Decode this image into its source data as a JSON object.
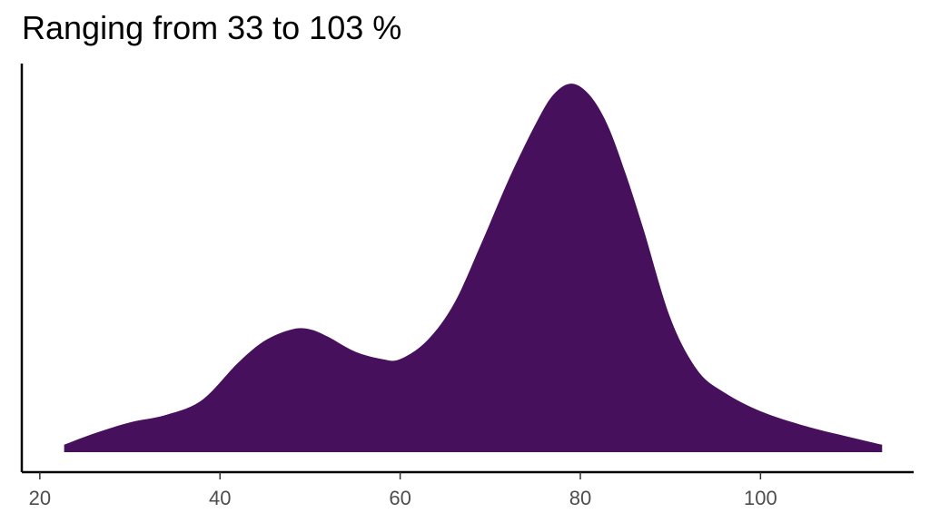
{
  "chart_data": {
    "type": "area",
    "title": "Ranging from 33 to 103 %",
    "xlabel": "",
    "ylabel": "",
    "xlim": [
      18,
      117
    ],
    "ylim": [
      0,
      1.0
    ],
    "x_ticks": [
      20,
      40,
      60,
      80,
      100
    ],
    "x_tick_labels": [
      "20",
      "40",
      "60",
      "80",
      "100"
    ],
    "y_ticks": [],
    "grid": false,
    "legend": "none",
    "fill_color": "#46105c",
    "series": [
      {
        "x": [
          22.7,
          26,
          30,
          34,
          38,
          42,
          45,
          48,
          50,
          52,
          55,
          58,
          60,
          63,
          66,
          69,
          72,
          75,
          77,
          79,
          81,
          83,
          85,
          87,
          90,
          93,
          96,
          100,
          105,
          110,
          113.5
        ],
        "y": [
          0.02,
          0.05,
          0.08,
          0.1,
          0.14,
          0.24,
          0.3,
          0.33,
          0.33,
          0.31,
          0.27,
          0.25,
          0.25,
          0.3,
          0.4,
          0.56,
          0.73,
          0.88,
          0.96,
          0.99,
          0.96,
          0.88,
          0.75,
          0.6,
          0.36,
          0.22,
          0.16,
          0.11,
          0.07,
          0.04,
          0.02
        ]
      }
    ]
  }
}
